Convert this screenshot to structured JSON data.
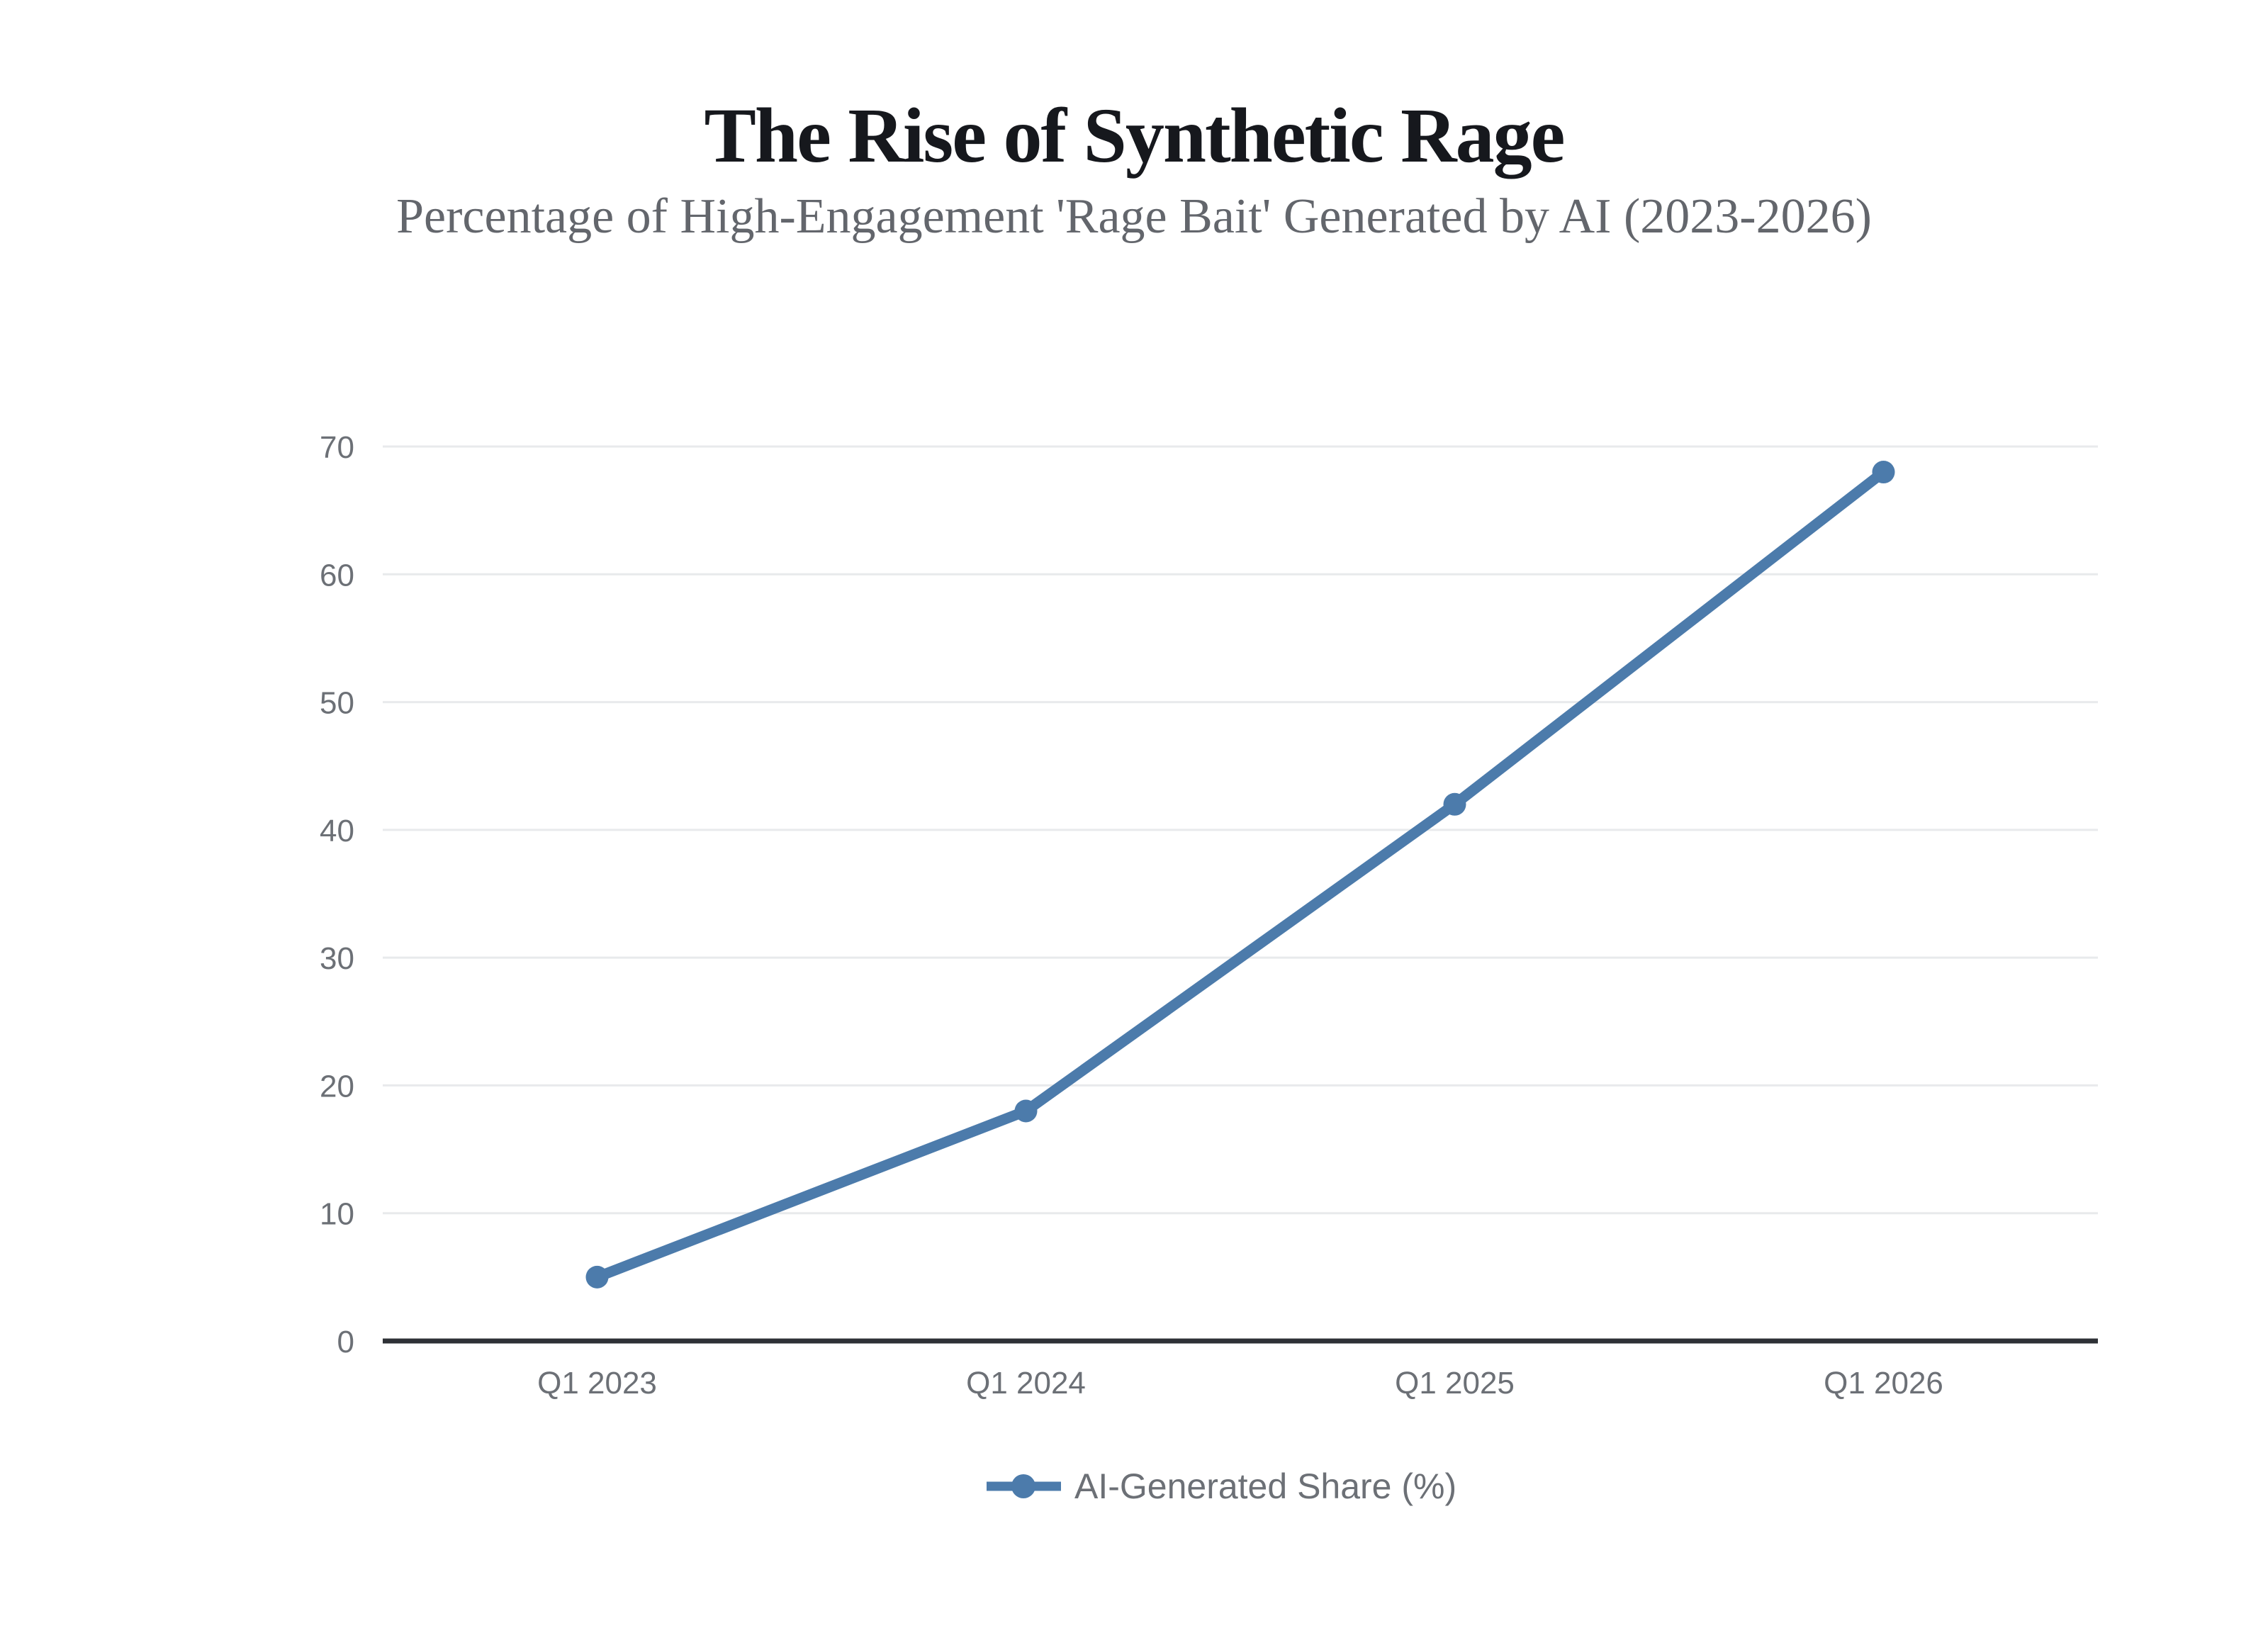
{
  "header": {
    "title": "The Rise of Synthetic Rage",
    "subtitle": "Percentage of High-Engagement 'Rage Bait' Generated by AI (2023-2026)"
  },
  "legend": {
    "label": "AI-Generated Share (%)"
  },
  "colors": {
    "series_blue": "#4C7BAB",
    "grid_gray": "#E8EAEC",
    "axis_dark": "#2E3136",
    "tick_gray": "#6C7076",
    "title_dark": "#16181D",
    "subtitle_gray": "#63666C",
    "background": "#FFFFFF"
  },
  "chart_data": {
    "type": "line",
    "title": "The Rise of Synthetic Rage",
    "subtitle": "Percentage of High-Engagement 'Rage Bait' Generated by AI (2023-2026)",
    "categories": [
      "Q1 2023",
      "Q1 2024",
      "Q1 2025",
      "Q1 2026"
    ],
    "series": [
      {
        "name": "AI-Generated Share (%)",
        "values": [
          5,
          18,
          42,
          68
        ],
        "color": "#4C7BAB",
        "marker": "circle"
      }
    ],
    "xlabel": "",
    "ylabel": "",
    "ylim": [
      0,
      70
    ],
    "yticks": [
      0,
      10,
      20,
      30,
      40,
      50,
      60,
      70
    ],
    "grid": true,
    "gridlines": "horizontal-only",
    "legend_position": "bottom-center"
  }
}
